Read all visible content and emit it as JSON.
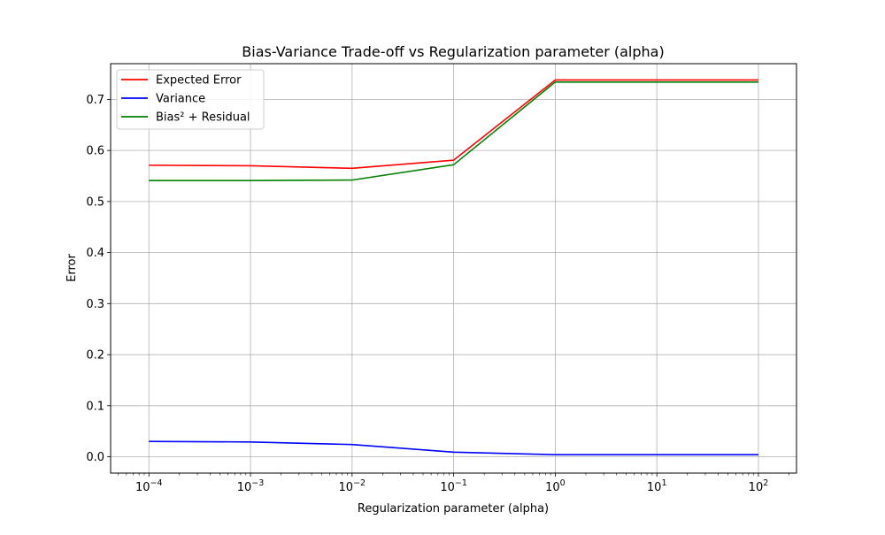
{
  "chart_data": {
    "type": "line",
    "title": "Bias-Variance Trade-off vs Regularization parameter (alpha)",
    "xlabel": "Regularization parameter (alpha)",
    "ylabel": "Error",
    "xscale": "log",
    "x": [
      0.0001,
      0.001,
      0.01,
      0.1,
      1,
      10,
      100
    ],
    "xlim": [
      4.2e-05,
      237
    ],
    "ylim": [
      -0.032,
      0.77
    ],
    "x_ticks": [
      {
        "value": 0.0001,
        "base": "10",
        "exp": "−4"
      },
      {
        "value": 0.001,
        "base": "10",
        "exp": "−3"
      },
      {
        "value": 0.01,
        "base": "10",
        "exp": "−2"
      },
      {
        "value": 0.1,
        "base": "10",
        "exp": "−1"
      },
      {
        "value": 1,
        "base": "10",
        "exp": "0"
      },
      {
        "value": 10,
        "base": "10",
        "exp": "1"
      },
      {
        "value": 100,
        "base": "10",
        "exp": "2"
      }
    ],
    "y_ticks": [
      {
        "value": 0.0,
        "label": "0.0"
      },
      {
        "value": 0.1,
        "label": "0.1"
      },
      {
        "value": 0.2,
        "label": "0.2"
      },
      {
        "value": 0.3,
        "label": "0.3"
      },
      {
        "value": 0.4,
        "label": "0.4"
      },
      {
        "value": 0.5,
        "label": "0.5"
      },
      {
        "value": 0.6,
        "label": "0.6"
      },
      {
        "value": 0.7,
        "label": "0.7"
      }
    ],
    "grid": true,
    "legend_position": "top-left",
    "series": [
      {
        "name": "Expected Error",
        "color": "#ff0000",
        "values": [
          0.571,
          0.57,
          0.565,
          0.581,
          0.738,
          0.738,
          0.738
        ]
      },
      {
        "name": "Variance",
        "color": "#0000ff",
        "values": [
          0.03,
          0.029,
          0.024,
          0.009,
          0.004,
          0.004,
          0.004
        ]
      },
      {
        "name": "Bias² + Residual",
        "color": "#008000",
        "values": [
          0.541,
          0.541,
          0.542,
          0.572,
          0.734,
          0.734,
          0.734
        ]
      }
    ]
  }
}
